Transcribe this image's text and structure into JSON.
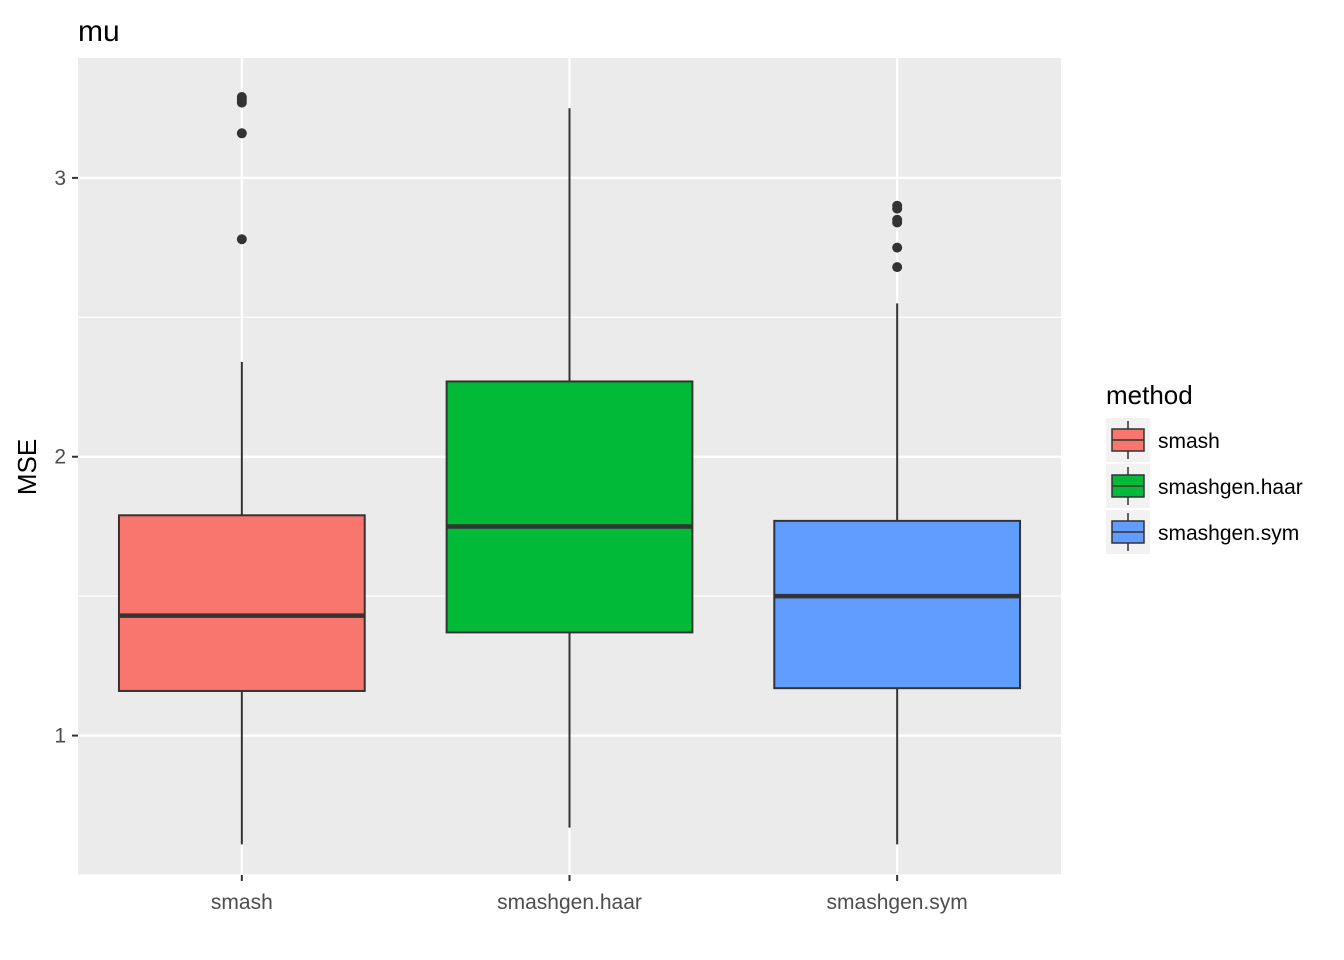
{
  "chart_data": {
    "type": "boxplot",
    "title": "mu",
    "xlabel": "",
    "ylabel": "MSE",
    "ylim": [
      0.5,
      3.43
    ],
    "yticks": [
      1,
      2,
      3
    ],
    "grid": true,
    "legend_position": "right",
    "legend_title": "method",
    "categories": [
      "smash",
      "smashgen.haar",
      "smashgen.sym"
    ],
    "series": [
      {
        "name": "smash",
        "color": "#F8766D",
        "whisker_low": 0.61,
        "q1": 1.16,
        "median": 1.43,
        "q3": 1.79,
        "whisker_high": 2.34,
        "outliers": [
          2.78,
          3.16,
          3.27,
          3.28,
          3.29
        ]
      },
      {
        "name": "smashgen.haar",
        "color": "#00BA38",
        "whisker_low": 0.67,
        "q1": 1.37,
        "median": 1.75,
        "q3": 2.27,
        "whisker_high": 3.25
      },
      {
        "name": "smashgen.sym",
        "color": "#619CFF",
        "whisker_low": 0.61,
        "q1": 1.17,
        "median": 1.5,
        "q3": 1.77,
        "whisker_high": 2.55,
        "outliers": [
          2.68,
          2.75,
          2.84,
          2.85,
          2.89,
          2.9
        ]
      }
    ]
  }
}
